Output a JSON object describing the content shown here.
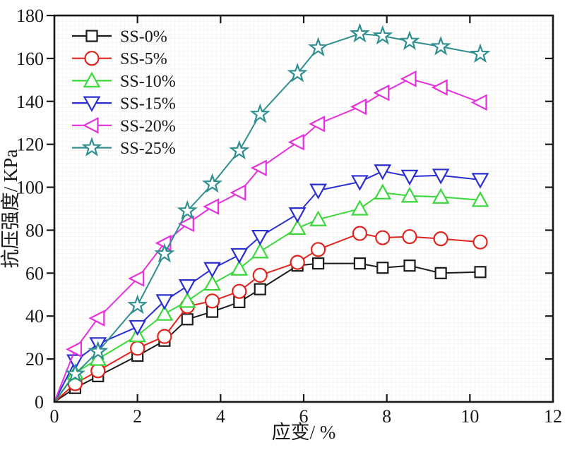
{
  "figure": {
    "background": "#ffffff",
    "axis_color": "#181818",
    "grid_color": "#f0ede9"
  },
  "chart_data": {
    "type": "line",
    "title": "",
    "xlabel": "应变/ %",
    "ylabel": "抗压强度/ KPa",
    "xlim": [
      0,
      12
    ],
    "ylim": [
      0,
      180
    ],
    "x_ticks": [
      0,
      2,
      4,
      6,
      8,
      10,
      12
    ],
    "y_ticks": [
      0,
      20,
      40,
      60,
      80,
      100,
      120,
      140,
      160,
      180
    ],
    "grid": "faint fine mesh",
    "legend_position": "upper-left-inside",
    "x": [
      0,
      0.5,
      1.05,
      2.0,
      2.65,
      3.2,
      3.8,
      4.45,
      4.95,
      5.85,
      6.35,
      7.35,
      7.9,
      8.55,
      9.3,
      10.25
    ],
    "series": [
      {
        "name": "SS-0%",
        "color": "#1b1b1b",
        "marker": "square",
        "values": [
          0,
          6.5,
          12,
          21.5,
          28.5,
          38.5,
          42,
          46.5,
          52.5,
          63.5,
          64.5,
          64.5,
          62.5,
          63.5,
          60,
          60.5
        ]
      },
      {
        "name": "SS-5%",
        "color": "#e0251f",
        "marker": "circle",
        "values": [
          0,
          8.5,
          14.5,
          25,
          30.5,
          44.5,
          47,
          51.5,
          59,
          65,
          71,
          78.5,
          76.5,
          77,
          76,
          74.5
        ]
      },
      {
        "name": "SS-10%",
        "color": "#3bd83b",
        "marker": "triangle-up",
        "values": [
          0,
          13.5,
          20,
          31,
          41,
          47,
          55,
          62,
          70,
          81,
          85,
          90,
          97.5,
          96,
          95.5,
          94
        ]
      },
      {
        "name": "SS-15%",
        "color": "#2b2fd0",
        "marker": "triangle-down",
        "values": [
          0,
          19,
          27,
          35,
          47,
          54,
          62,
          68.5,
          77,
          87.5,
          98.5,
          102.5,
          107.5,
          105,
          105.5,
          103.5
        ]
      },
      {
        "name": "SS-20%",
        "color": "#e531dd",
        "marker": "triangle-left",
        "values": [
          0,
          24.5,
          39,
          57.5,
          74,
          83,
          91,
          97.5,
          109,
          121,
          129.5,
          137.5,
          144,
          150.5,
          146.5,
          139.5
        ]
      },
      {
        "name": "SS-25%",
        "color": "#2f8f8f",
        "marker": "star",
        "values": [
          0,
          13,
          23.5,
          45,
          69,
          89,
          101.5,
          117,
          134,
          153,
          165,
          171.5,
          170.5,
          168,
          165.5,
          162
        ]
      }
    ]
  }
}
